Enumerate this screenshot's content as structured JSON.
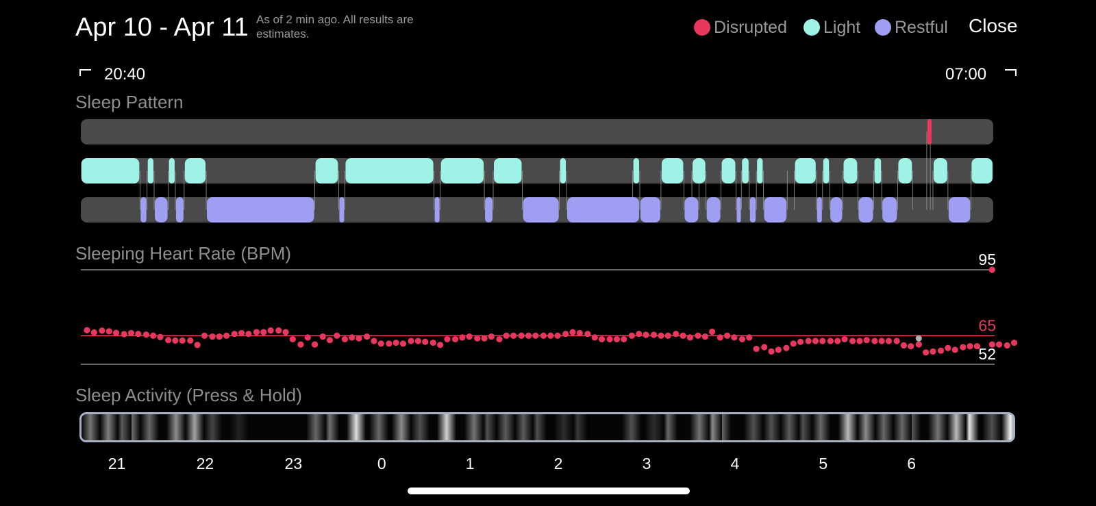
{
  "header": {
    "title": "Apr 10 - Apr 11",
    "note": "As of 2 min ago. All results are estimates.",
    "close_label": "Close"
  },
  "legend": [
    {
      "label": "Disrupted",
      "color": "#e8385e"
    },
    {
      "label": "Light",
      "color": "#9ff3e6"
    },
    {
      "label": "Restful",
      "color": "#9e9ff2"
    }
  ],
  "range": {
    "start": "20:40",
    "end": "07:00"
  },
  "sections": {
    "pattern_title": "Sleep Pattern",
    "heart_title": "Sleeping Heart Rate (BPM)",
    "activity_title": "Sleep Activity (Press & Hold)"
  },
  "chart_data": [
    {
      "type": "timeline",
      "title": "Sleep Pattern",
      "time_range": [
        "20:40",
        "07:00"
      ],
      "x_unit": "hours since 20:40",
      "rows": [
        "Disrupted",
        "Light",
        "Restful"
      ],
      "segments": [
        {
          "state": "Disrupted",
          "start": 9.58,
          "end": 9.62
        },
        {
          "state": "Light",
          "start": 0.0,
          "end": 0.67
        },
        {
          "state": "Light",
          "start": 0.75,
          "end": 0.83
        },
        {
          "state": "Light",
          "start": 0.99,
          "end": 1.07
        },
        {
          "state": "Light",
          "start": 1.17,
          "end": 1.42
        },
        {
          "state": "Light",
          "start": 2.65,
          "end": 2.92
        },
        {
          "state": "Light",
          "start": 2.99,
          "end": 4.0
        },
        {
          "state": "Light",
          "start": 4.07,
          "end": 4.57
        },
        {
          "state": "Light",
          "start": 4.67,
          "end": 5.0
        },
        {
          "state": "Light",
          "start": 5.42,
          "end": 5.5
        },
        {
          "state": "Light",
          "start": 6.25,
          "end": 6.33
        },
        {
          "state": "Light",
          "start": 6.57,
          "end": 6.83
        },
        {
          "state": "Light",
          "start": 6.92,
          "end": 7.08
        },
        {
          "state": "Light",
          "start": 7.25,
          "end": 7.42
        },
        {
          "state": "Light",
          "start": 7.48,
          "end": 7.57
        },
        {
          "state": "Light",
          "start": 7.65,
          "end": 7.73
        },
        {
          "state": "Light",
          "start": 8.08,
          "end": 8.33
        },
        {
          "state": "Light",
          "start": 8.4,
          "end": 8.48
        },
        {
          "state": "Light",
          "start": 8.63,
          "end": 8.8
        },
        {
          "state": "Light",
          "start": 8.98,
          "end": 9.07
        },
        {
          "state": "Light",
          "start": 9.25,
          "end": 9.42
        },
        {
          "state": "Light",
          "start": 9.65,
          "end": 9.82
        },
        {
          "state": "Light",
          "start": 10.08,
          "end": 10.33
        },
        {
          "state": "Restful",
          "start": 0.67,
          "end": 0.75
        },
        {
          "state": "Restful",
          "start": 0.83,
          "end": 0.99
        },
        {
          "state": "Restful",
          "start": 1.07,
          "end": 1.17
        },
        {
          "state": "Restful",
          "start": 1.42,
          "end": 2.65
        },
        {
          "state": "Restful",
          "start": 2.92,
          "end": 2.99
        },
        {
          "state": "Restful",
          "start": 4.0,
          "end": 4.07
        },
        {
          "state": "Restful",
          "start": 4.57,
          "end": 4.67
        },
        {
          "state": "Restful",
          "start": 5.0,
          "end": 5.42
        },
        {
          "state": "Restful",
          "start": 5.5,
          "end": 6.33
        },
        {
          "state": "Restful",
          "start": 6.33,
          "end": 6.57
        },
        {
          "state": "Restful",
          "start": 6.83,
          "end": 7.0
        },
        {
          "state": "Restful",
          "start": 7.08,
          "end": 7.25
        },
        {
          "state": "Restful",
          "start": 7.42,
          "end": 7.48
        },
        {
          "state": "Restful",
          "start": 7.57,
          "end": 7.65
        },
        {
          "state": "Restful",
          "start": 7.73,
          "end": 8.0
        },
        {
          "state": "Restful",
          "start": 8.33,
          "end": 8.4
        },
        {
          "state": "Restful",
          "start": 8.48,
          "end": 8.63
        },
        {
          "state": "Restful",
          "start": 8.8,
          "end": 8.98
        },
        {
          "state": "Restful",
          "start": 9.07,
          "end": 9.25
        },
        {
          "state": "Restful",
          "start": 9.82,
          "end": 10.08
        }
      ]
    },
    {
      "type": "scatter",
      "title": "Sleeping Heart Rate (BPM)",
      "x_unit": "hours since 20:40",
      "ylim": [
        52,
        95
      ],
      "reference_lines": [
        95,
        65,
        52
      ],
      "reference_labels": [
        "95",
        "65",
        "52"
      ],
      "points": [
        {
          "x": 0.0,
          "y": 67.5
        },
        {
          "x": 0.08,
          "y": 66.5
        },
        {
          "x": 0.17,
          "y": 67.3
        },
        {
          "x": 0.25,
          "y": 67.0
        },
        {
          "x": 0.33,
          "y": 66.3
        },
        {
          "x": 0.42,
          "y": 65.7
        },
        {
          "x": 0.5,
          "y": 66.2
        },
        {
          "x": 0.58,
          "y": 65.8
        },
        {
          "x": 0.67,
          "y": 65.5
        },
        {
          "x": 0.75,
          "y": 65.0
        },
        {
          "x": 0.83,
          "y": 64.4
        },
        {
          "x": 0.92,
          "y": 63.0
        },
        {
          "x": 1.0,
          "y": 62.8
        },
        {
          "x": 1.08,
          "y": 62.8
        },
        {
          "x": 1.17,
          "y": 62.8
        },
        {
          "x": 1.25,
          "y": 60.8
        },
        {
          "x": 1.33,
          "y": 65.0
        },
        {
          "x": 1.42,
          "y": 64.6
        },
        {
          "x": 1.5,
          "y": 64.6
        },
        {
          "x": 1.58,
          "y": 65.0
        },
        {
          "x": 1.67,
          "y": 65.8
        },
        {
          "x": 1.75,
          "y": 66.2
        },
        {
          "x": 1.83,
          "y": 65.8
        },
        {
          "x": 1.92,
          "y": 66.6
        },
        {
          "x": 2.0,
          "y": 66.6
        },
        {
          "x": 2.08,
          "y": 67.4
        },
        {
          "x": 2.17,
          "y": 67.4
        },
        {
          "x": 2.25,
          "y": 66.6
        },
        {
          "x": 2.33,
          "y": 63.4
        },
        {
          "x": 2.42,
          "y": 61.0
        },
        {
          "x": 2.5,
          "y": 64.2
        },
        {
          "x": 2.58,
          "y": 61.0
        },
        {
          "x": 2.67,
          "y": 64.6
        },
        {
          "x": 2.75,
          "y": 63.0
        },
        {
          "x": 2.83,
          "y": 65.0
        },
        {
          "x": 2.92,
          "y": 63.4
        },
        {
          "x": 3.0,
          "y": 64.2
        },
        {
          "x": 3.08,
          "y": 63.8
        },
        {
          "x": 3.17,
          "y": 64.6
        },
        {
          "x": 3.25,
          "y": 62.6
        },
        {
          "x": 3.33,
          "y": 61.4
        },
        {
          "x": 3.42,
          "y": 61.4
        },
        {
          "x": 3.5,
          "y": 61.8
        },
        {
          "x": 3.58,
          "y": 61.4
        },
        {
          "x": 3.67,
          "y": 62.6
        },
        {
          "x": 3.75,
          "y": 62.6
        },
        {
          "x": 3.83,
          "y": 62.2
        },
        {
          "x": 3.92,
          "y": 61.8
        },
        {
          "x": 4.0,
          "y": 60.8
        },
        {
          "x": 4.08,
          "y": 63.4
        },
        {
          "x": 4.17,
          "y": 63.4
        },
        {
          "x": 4.25,
          "y": 64.2
        },
        {
          "x": 4.33,
          "y": 64.6
        },
        {
          "x": 4.42,
          "y": 63.8
        },
        {
          "x": 4.5,
          "y": 63.8
        },
        {
          "x": 4.58,
          "y": 64.6
        },
        {
          "x": 4.67,
          "y": 63.4
        },
        {
          "x": 4.75,
          "y": 65.0
        },
        {
          "x": 4.83,
          "y": 65.0
        },
        {
          "x": 4.92,
          "y": 65.0
        },
        {
          "x": 5.0,
          "y": 65.0
        },
        {
          "x": 5.08,
          "y": 65.0
        },
        {
          "x": 5.17,
          "y": 65.0
        },
        {
          "x": 5.25,
          "y": 65.0
        },
        {
          "x": 5.33,
          "y": 65.0
        },
        {
          "x": 5.42,
          "y": 65.8
        },
        {
          "x": 5.5,
          "y": 66.6
        },
        {
          "x": 5.58,
          "y": 66.2
        },
        {
          "x": 5.67,
          "y": 65.8
        },
        {
          "x": 5.75,
          "y": 64.2
        },
        {
          "x": 5.83,
          "y": 63.4
        },
        {
          "x": 5.92,
          "y": 63.4
        },
        {
          "x": 6.0,
          "y": 63.4
        },
        {
          "x": 6.08,
          "y": 63.4
        },
        {
          "x": 6.17,
          "y": 65.0
        },
        {
          "x": 6.25,
          "y": 65.8
        },
        {
          "x": 6.33,
          "y": 65.4
        },
        {
          "x": 6.42,
          "y": 65.4
        },
        {
          "x": 6.5,
          "y": 65.0
        },
        {
          "x": 6.58,
          "y": 65.0
        },
        {
          "x": 6.67,
          "y": 65.8
        },
        {
          "x": 6.75,
          "y": 65.0
        },
        {
          "x": 6.83,
          "y": 64.2
        },
        {
          "x": 6.92,
          "y": 65.0
        },
        {
          "x": 7.0,
          "y": 64.6
        },
        {
          "x": 7.08,
          "y": 66.8
        },
        {
          "x": 7.17,
          "y": 64.2
        },
        {
          "x": 7.25,
          "y": 65.0
        },
        {
          "x": 7.33,
          "y": 64.2
        },
        {
          "x": 7.42,
          "y": 63.4
        },
        {
          "x": 7.5,
          "y": 64.2
        },
        {
          "x": 7.58,
          "y": 59.0
        },
        {
          "x": 7.67,
          "y": 59.8
        },
        {
          "x": 7.75,
          "y": 57.8
        },
        {
          "x": 7.83,
          "y": 58.6
        },
        {
          "x": 7.92,
          "y": 59.4
        },
        {
          "x": 8.0,
          "y": 61.4
        },
        {
          "x": 8.08,
          "y": 62.2
        },
        {
          "x": 8.17,
          "y": 62.6
        },
        {
          "x": 8.25,
          "y": 62.6
        },
        {
          "x": 8.33,
          "y": 62.6
        },
        {
          "x": 8.42,
          "y": 62.6
        },
        {
          "x": 8.5,
          "y": 62.6
        },
        {
          "x": 8.58,
          "y": 63.4
        },
        {
          "x": 8.67,
          "y": 62.6
        },
        {
          "x": 8.75,
          "y": 62.6
        },
        {
          "x": 8.83,
          "y": 63.0
        },
        {
          "x": 8.92,
          "y": 62.6
        },
        {
          "x": 9.0,
          "y": 62.6
        },
        {
          "x": 9.08,
          "y": 62.6
        },
        {
          "x": 9.17,
          "y": 62.6
        },
        {
          "x": 9.25,
          "y": 60.6
        },
        {
          "x": 9.33,
          "y": 60.2
        },
        {
          "x": 9.42,
          "y": 61.0
        },
        {
          "x": 9.5,
          "y": 57.4
        },
        {
          "x": 9.58,
          "y": 57.8
        },
        {
          "x": 9.67,
          "y": 58.2
        },
        {
          "x": 9.75,
          "y": 59.4
        },
        {
          "x": 9.83,
          "y": 58.6
        },
        {
          "x": 9.92,
          "y": 59.8
        },
        {
          "x": 10.0,
          "y": 60.2
        },
        {
          "x": 10.08,
          "y": 60.2
        },
        {
          "x": 10.25,
          "y": 61.0
        },
        {
          "x": 10.33,
          "y": 61.0
        },
        {
          "x": 10.42,
          "y": 60.6
        },
        {
          "x": 10.5,
          "y": 61.8
        },
        {
          "x": 10.25,
          "y": 95.0
        }
      ],
      "gray_points": [
        {
          "x": 9.42,
          "y": 63.8
        }
      ]
    },
    {
      "type": "heatmap",
      "title": "Sleep Activity (Press & Hold)",
      "x_unit": "hours since 20:40",
      "tick_labels": [
        "21",
        "22",
        "23",
        "0",
        "1",
        "2",
        "3",
        "4",
        "5",
        "6"
      ],
      "tick_positions": [
        0.33,
        1.33,
        2.33,
        3.33,
        4.33,
        5.33,
        6.33,
        7.33,
        8.33,
        9.33
      ],
      "intensity": [
        {
          "x": 0.1,
          "v": 0.45
        },
        {
          "x": 0.3,
          "v": 0.5
        },
        {
          "x": 0.45,
          "v": 0.35
        },
        {
          "x": 0.55,
          "v": 0.45
        },
        {
          "x": 0.75,
          "v": 0.4
        },
        {
          "x": 1.05,
          "v": 0.55
        },
        {
          "x": 1.25,
          "v": 0.65
        },
        {
          "x": 1.45,
          "v": 0.25
        },
        {
          "x": 1.75,
          "v": 0.1
        },
        {
          "x": 2.6,
          "v": 0.4
        },
        {
          "x": 2.75,
          "v": 0.45
        },
        {
          "x": 3.05,
          "v": 0.9
        },
        {
          "x": 3.3,
          "v": 0.4
        },
        {
          "x": 3.55,
          "v": 0.55
        },
        {
          "x": 3.75,
          "v": 0.3
        },
        {
          "x": 4.05,
          "v": 0.85
        },
        {
          "x": 4.35,
          "v": 0.45
        },
        {
          "x": 4.5,
          "v": 0.3
        },
        {
          "x": 4.7,
          "v": 0.35
        },
        {
          "x": 4.9,
          "v": 0.35
        },
        {
          "x": 5.05,
          "v": 0.3
        },
        {
          "x": 5.35,
          "v": 0.15
        },
        {
          "x": 5.5,
          "v": 0.2
        },
        {
          "x": 6.1,
          "v": 0.3
        },
        {
          "x": 6.35,
          "v": 0.15
        },
        {
          "x": 6.5,
          "v": 0.4
        },
        {
          "x": 6.85,
          "v": 0.45
        },
        {
          "x": 7.0,
          "v": 0.55
        },
        {
          "x": 7.1,
          "v": 0.4
        },
        {
          "x": 7.45,
          "v": 0.3
        },
        {
          "x": 7.65,
          "v": 0.3
        },
        {
          "x": 7.85,
          "v": 0.35
        },
        {
          "x": 8.0,
          "v": 0.3
        },
        {
          "x": 8.2,
          "v": 0.4
        },
        {
          "x": 8.5,
          "v": 0.75
        },
        {
          "x": 8.7,
          "v": 0.55
        },
        {
          "x": 8.9,
          "v": 0.4
        },
        {
          "x": 9.1,
          "v": 0.4
        },
        {
          "x": 9.2,
          "v": 0.35
        },
        {
          "x": 9.5,
          "v": 0.45
        },
        {
          "x": 9.7,
          "v": 0.75
        },
        {
          "x": 9.85,
          "v": 0.95
        },
        {
          "x": 10.1,
          "v": 0.3
        },
        {
          "x": 10.3,
          "v": 0.98
        }
      ]
    }
  ]
}
